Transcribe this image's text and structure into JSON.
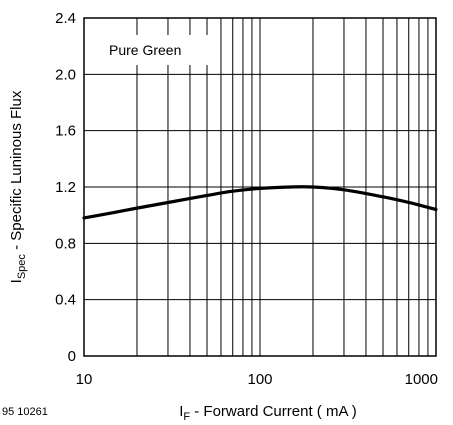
{
  "figure_code": "95 10261",
  "chart_data": {
    "type": "line",
    "x_scale": "log",
    "xlim": [
      10,
      1000
    ],
    "ylim": [
      0,
      2.4
    ],
    "grid": true,
    "x_ticks": [
      "10",
      "100",
      "1000"
    ],
    "y_ticks": [
      "0",
      "0.4",
      "0.8",
      "1.2",
      "1.6",
      "2.0",
      "2.4"
    ],
    "xlabel": {
      "main": "I",
      "sub": "F",
      "rest": " - Forward Current ( mA )"
    },
    "ylabel": {
      "main": "I",
      "sub": "Spec",
      "rest": " - Specific Luninous Flux"
    },
    "legend_label": "Pure Green",
    "series": [
      {
        "name": "Pure Green",
        "x": [
          10,
          15,
          20,
          30,
          50,
          70,
          100,
          150,
          200,
          300,
          500,
          700,
          1000
        ],
        "y": [
          0.98,
          1.02,
          1.05,
          1.09,
          1.14,
          1.17,
          1.19,
          1.2,
          1.2,
          1.18,
          1.13,
          1.09,
          1.04
        ]
      }
    ]
  }
}
